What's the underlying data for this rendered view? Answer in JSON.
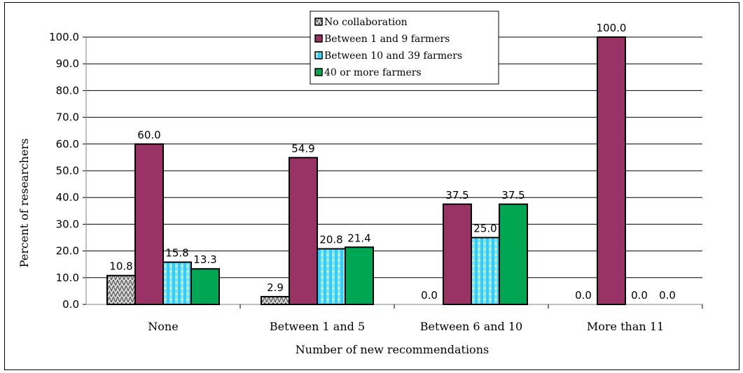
{
  "chart_data": {
    "type": "bar",
    "categories": [
      "None",
      "Between 1 and 5",
      "Between 6 and 10",
      "More than 11"
    ],
    "series": [
      {
        "name": "No collaboration",
        "values": [
          10.8,
          2.9,
          0.0,
          0.0
        ]
      },
      {
        "name": "Between 1 and 9 farmers",
        "values": [
          60.0,
          54.9,
          37.5,
          100.0
        ]
      },
      {
        "name": "Between 10 and 39 farmers",
        "values": [
          15.8,
          20.8,
          25.0,
          0.0
        ]
      },
      {
        "name": "40 or more farmers",
        "values": [
          13.3,
          21.4,
          37.5,
          0.0
        ]
      }
    ],
    "xlabel": "Number of new recommendations",
    "ylabel": "Percent of researchers",
    "ylim": [
      0,
      100
    ],
    "yticks": [
      "0.0",
      "10.0",
      "20.0",
      "30.0",
      "40.0",
      "50.0",
      "60.0",
      "70.0",
      "80.0",
      "90.0",
      "100.0"
    ],
    "grid": true,
    "legend_position": "top-center",
    "colors": [
      "#9a9a9a",
      "#993366",
      "#33ccff",
      "#00a651"
    ]
  }
}
